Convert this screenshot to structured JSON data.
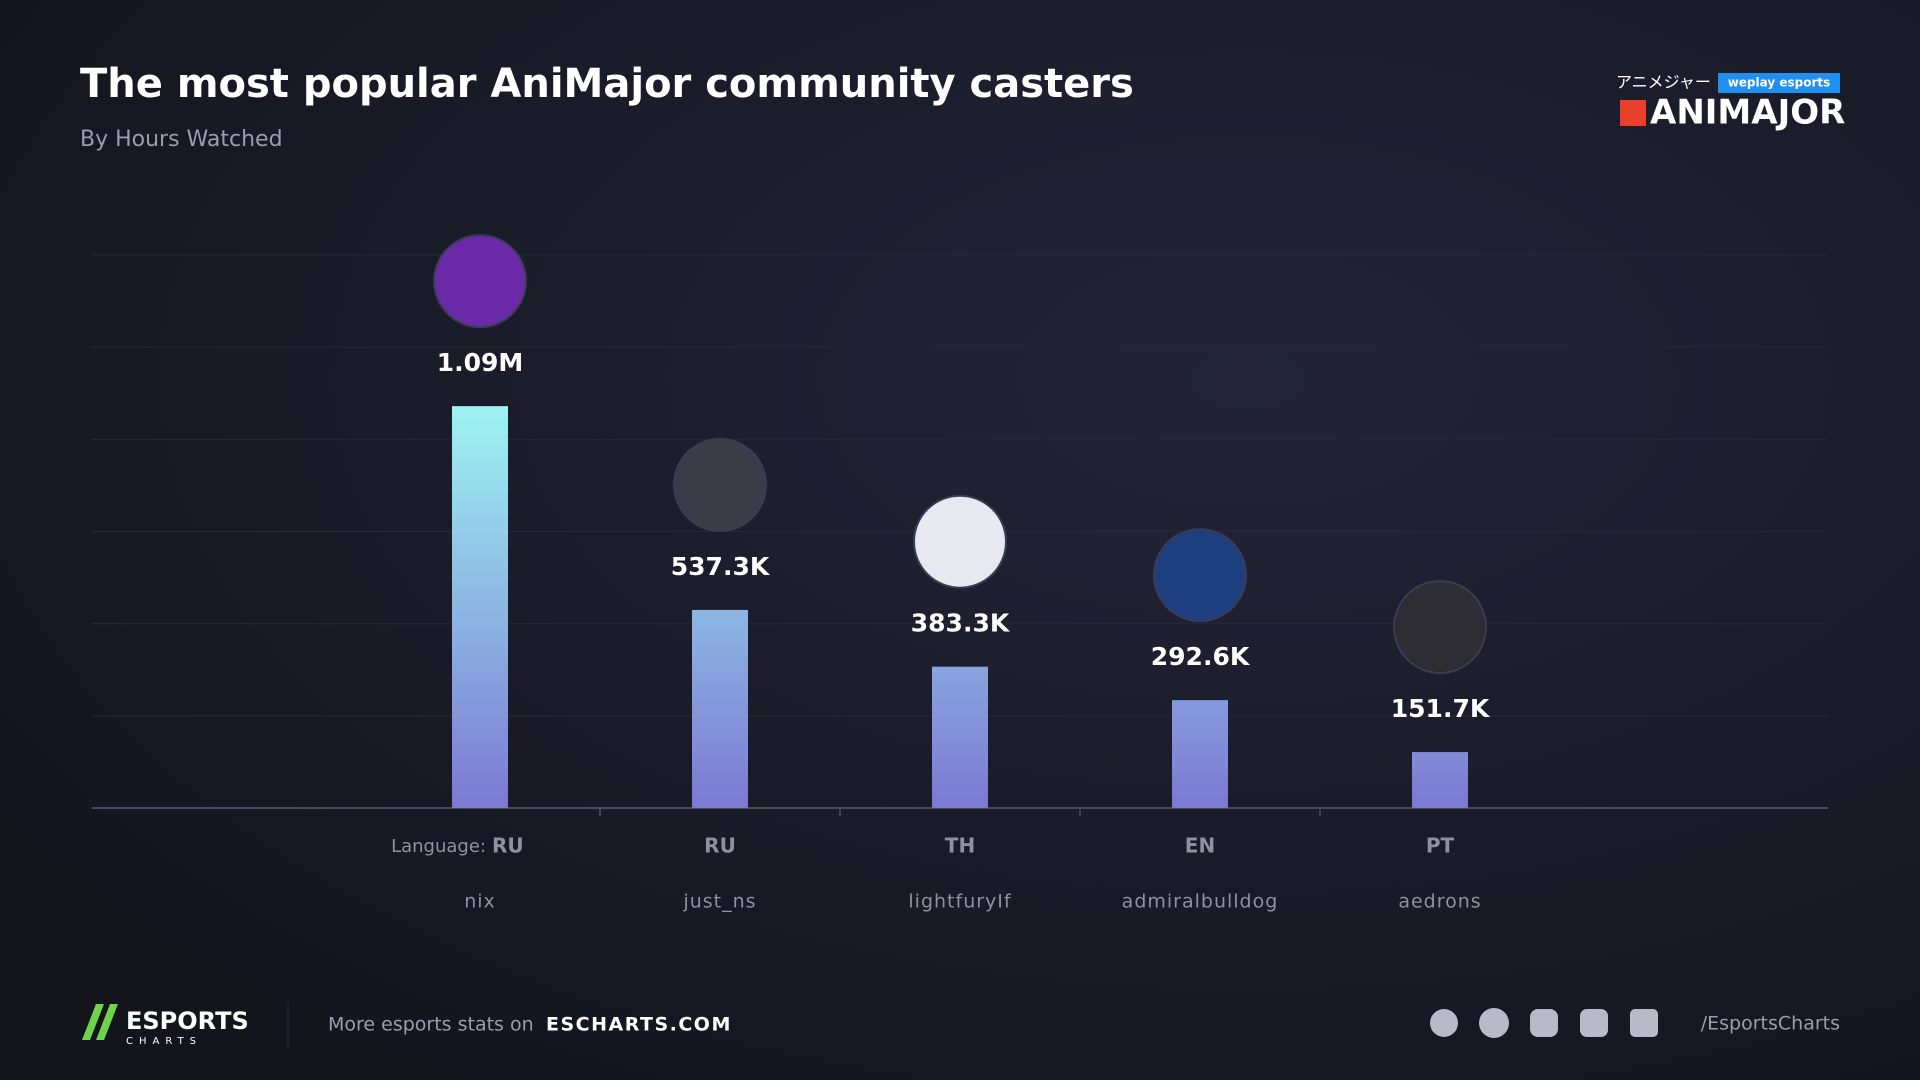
{
  "chart_data": {
    "type": "bar",
    "title": "The most popular AniMajor community casters",
    "subtitle": "By Hours Watched",
    "categories": [
      "nix",
      "just_ns",
      "lightfuryIf",
      "admiralbulldog",
      "aedrons"
    ],
    "values": [
      1090000,
      537300,
      383300,
      292600,
      151700
    ],
    "value_labels": [
      "1.09M",
      "537.3K",
      "383.3K",
      "292.6K",
      "151.7K"
    ],
    "language_label": "Language:",
    "languages": [
      "RU",
      "RU",
      "TH",
      "EN",
      "PT"
    ],
    "color_top": "#9ef4f2",
    "color_bottom": "#7c79d3",
    "ylim": [
      0,
      1500000
    ],
    "yticks": [
      0,
      250000,
      500000,
      750000,
      1000000,
      1250000,
      1500000
    ],
    "grid": true
  },
  "branding": {
    "event_jp": "アニメジャー",
    "organizer": "weplay esports",
    "event": "ANIMAJOR"
  },
  "footer": {
    "brand": "ESPORTS",
    "brand_sub": "CHARTS",
    "more": "More esports stats on",
    "site": "ESCHARTS.COM",
    "handle": "/EsportsCharts"
  }
}
